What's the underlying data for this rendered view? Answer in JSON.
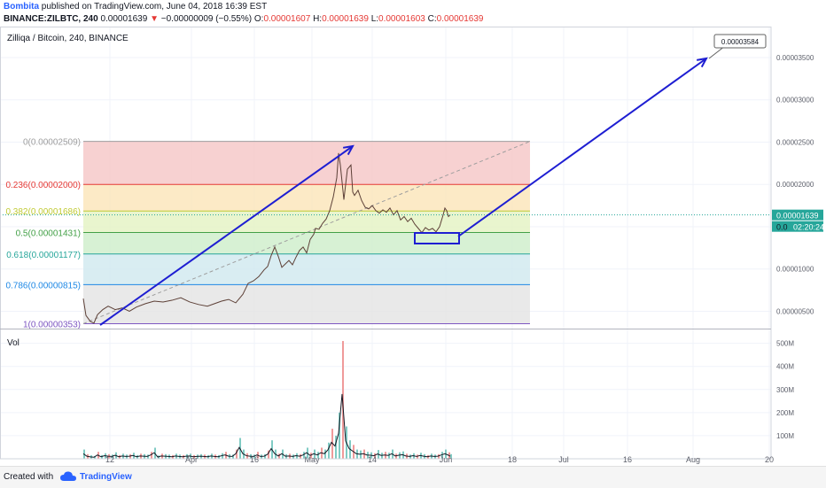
{
  "header": {
    "author": "Bombita",
    "published": "published on TradingView.com, June 04, 2018 16:39 EST",
    "symbol": "BINANCE:ZILBTC, 240",
    "price": "0.00001639",
    "change_arrow": "▼",
    "change": "−0.00000009 (−0.55%)",
    "o_label": "O:",
    "o_value": "0.00001607",
    "h_label": "H:",
    "h_value": "0.00001639",
    "l_label": "L:",
    "l_value": "0.00001603",
    "c_label": "C:",
    "c_value": "0.00001639"
  },
  "chart_title": "Zilliqa / Bitcoin, 240, BINANCE",
  "volume_label": "Vol",
  "footer": {
    "created_with": "Created with",
    "brand": "TradingView",
    "logo_icon": "tradingview-cloud-icon"
  },
  "chart_data": {
    "type": "line",
    "ylim": [
      2.5e-06,
      4e-06
    ],
    "y_ticks": [
      "0.00003500",
      "0.00003000",
      "0.00002500",
      "0.00002000",
      "0.00001500",
      "0.00001000",
      "0.00000500"
    ],
    "y_tick_values": [
      3.5e-05,
      3e-05,
      2.5e-05,
      2e-05,
      1.5e-05,
      1e-05,
      5e-06
    ],
    "x_ticks": [
      "12",
      "Apr",
      "16",
      "May",
      "14",
      "Jun",
      "18",
      "Jul",
      "16",
      "Aug",
      "20"
    ],
    "last_price_label": "0.00001639",
    "countdown_label": "02:20:24",
    "last_price_short": "0.0",
    "target_label": "0.00003584",
    "fib_levels": [
      {
        "ratio": 0,
        "label": "0(0.00002509)",
        "value": 2.509e-05,
        "color": "#9e9e9e",
        "fill": "#f5c6c6"
      },
      {
        "ratio": 0.236,
        "label": "0.236(0.00002000)",
        "value": 2e-05,
        "color": "#e53935",
        "fill": "#fbe5b8"
      },
      {
        "ratio": 0.382,
        "label": "0.382(0.00001686)",
        "value": 1.686e-05,
        "color": "#c0ca33",
        "fill": "#e4f3c2"
      },
      {
        "ratio": 0.5,
        "label": "0.5(0.00001431)",
        "value": 1.431e-05,
        "color": "#43a047",
        "fill": "#cdeec9"
      },
      {
        "ratio": 0.618,
        "label": "0.618(0.00001177)",
        "value": 1.177e-05,
        "color": "#26a69a",
        "fill": "#cfe8ef"
      },
      {
        "ratio": 0.786,
        "label": "0.786(0.00000815)",
        "value": 8.15e-06,
        "color": "#1e88e5",
        "fill": "#e3e3e3"
      },
      {
        "ratio": 1,
        "label": "1(0.00000353)",
        "value": 3.53e-06,
        "color": "#7e57c2",
        "fill": null
      }
    ],
    "price_series": [
      [
        0,
        6.5
      ],
      [
        3,
        4.5
      ],
      [
        8,
        3.8
      ],
      [
        12,
        3.6
      ],
      [
        16,
        4.6
      ],
      [
        22,
        5.2
      ],
      [
        28,
        5.6
      ],
      [
        36,
        5.2
      ],
      [
        44,
        5.4
      ],
      [
        52,
        5.0
      ],
      [
        60,
        5.5
      ],
      [
        70,
        5.9
      ],
      [
        80,
        6.2
      ],
      [
        90,
        6.1
      ],
      [
        100,
        6.3
      ],
      [
        110,
        6.6
      ],
      [
        120,
        6.1
      ],
      [
        130,
        5.8
      ],
      [
        140,
        5.6
      ],
      [
        148,
        5.9
      ],
      [
        156,
        6.2
      ],
      [
        164,
        6.4
      ],
      [
        172,
        6.0
      ],
      [
        180,
        7.0
      ],
      [
        186,
        8.3
      ],
      [
        192,
        8.6
      ],
      [
        198,
        9.1
      ],
      [
        204,
        9.9
      ],
      [
        208,
        10.3
      ],
      [
        212,
        11.6
      ],
      [
        216,
        12.6
      ],
      [
        220,
        11.5
      ],
      [
        224,
        10.2
      ],
      [
        228,
        10.6
      ],
      [
        232,
        11.0
      ],
      [
        236,
        10.5
      ],
      [
        240,
        11.4
      ],
      [
        244,
        12.2
      ],
      [
        248,
        12.6
      ],
      [
        252,
        11.9
      ],
      [
        256,
        13.5
      ],
      [
        260,
        14.1
      ],
      [
        262,
        14.8
      ],
      [
        266,
        14.7
      ],
      [
        270,
        15.4
      ],
      [
        274,
        15.9
      ],
      [
        278,
        16.9
      ],
      [
        282,
        18.5
      ],
      [
        286,
        20.8
      ],
      [
        288,
        23.7
      ],
      [
        290,
        22.3
      ],
      [
        294,
        18.2
      ],
      [
        298,
        21.8
      ],
      [
        302,
        22.3
      ],
      [
        304,
        19.1
      ],
      [
        306,
        18.7
      ],
      [
        310,
        19.3
      ],
      [
        314,
        18.1
      ],
      [
        318,
        17.3
      ],
      [
        322,
        17.1
      ],
      [
        326,
        17.5
      ],
      [
        330,
        16.9
      ],
      [
        334,
        16.6
      ],
      [
        338,
        17.0
      ],
      [
        342,
        16.7
      ],
      [
        346,
        17.2
      ],
      [
        350,
        16.4
      ],
      [
        354,
        16.9
      ],
      [
        358,
        15.8
      ],
      [
        362,
        16.2
      ],
      [
        366,
        15.6
      ],
      [
        370,
        16.0
      ],
      [
        374,
        15.3
      ],
      [
        378,
        14.8
      ],
      [
        382,
        14.3
      ],
      [
        386,
        14.9
      ],
      [
        390,
        14.6
      ],
      [
        394,
        14.8
      ],
      [
        398,
        14.4
      ],
      [
        402,
        15.0
      ],
      [
        406,
        16.4
      ],
      [
        408,
        17.2
      ],
      [
        410,
        16.9
      ],
      [
        412,
        16.2
      ],
      [
        414,
        16.4
      ]
    ],
    "volume_series": [
      [
        0,
        40
      ],
      [
        4,
        20
      ],
      [
        8,
        15
      ],
      [
        12,
        12
      ],
      [
        16,
        30
      ],
      [
        20,
        16
      ],
      [
        24,
        24
      ],
      [
        28,
        20
      ],
      [
        32,
        18
      ],
      [
        36,
        28
      ],
      [
        40,
        16
      ],
      [
        44,
        22
      ],
      [
        48,
        18
      ],
      [
        52,
        20
      ],
      [
        56,
        26
      ],
      [
        60,
        16
      ],
      [
        64,
        22
      ],
      [
        68,
        20
      ],
      [
        72,
        18
      ],
      [
        76,
        30
      ],
      [
        80,
        48
      ],
      [
        84,
        14
      ],
      [
        88,
        22
      ],
      [
        92,
        20
      ],
      [
        96,
        18
      ],
      [
        100,
        16
      ],
      [
        104,
        22
      ],
      [
        108,
        18
      ],
      [
        112,
        16
      ],
      [
        116,
        20
      ],
      [
        120,
        22
      ],
      [
        124,
        16
      ],
      [
        128,
        18
      ],
      [
        132,
        20
      ],
      [
        136,
        18
      ],
      [
        140,
        16
      ],
      [
        144,
        22
      ],
      [
        148,
        18
      ],
      [
        152,
        16
      ],
      [
        156,
        24
      ],
      [
        160,
        30
      ],
      [
        164,
        20
      ],
      [
        168,
        18
      ],
      [
        172,
        40
      ],
      [
        176,
        90
      ],
      [
        180,
        40
      ],
      [
        184,
        24
      ],
      [
        188,
        20
      ],
      [
        192,
        18
      ],
      [
        196,
        30
      ],
      [
        200,
        18
      ],
      [
        204,
        20
      ],
      [
        208,
        36
      ],
      [
        212,
        80
      ],
      [
        216,
        40
      ],
      [
        220,
        22
      ],
      [
        224,
        40
      ],
      [
        228,
        20
      ],
      [
        232,
        22
      ],
      [
        236,
        18
      ],
      [
        240,
        24
      ],
      [
        244,
        20
      ],
      [
        248,
        30
      ],
      [
        252,
        48
      ],
      [
        256,
        26
      ],
      [
        260,
        40
      ],
      [
        264,
        30
      ],
      [
        268,
        48
      ],
      [
        272,
        40
      ],
      [
        276,
        70
      ],
      [
        280,
        130
      ],
      [
        284,
        100
      ],
      [
        288,
        200
      ],
      [
        292,
        510
      ],
      [
        296,
        140
      ],
      [
        300,
        80
      ],
      [
        304,
        60
      ],
      [
        308,
        40
      ],
      [
        312,
        36
      ],
      [
        316,
        40
      ],
      [
        320,
        30
      ],
      [
        324,
        28
      ],
      [
        328,
        24
      ],
      [
        332,
        38
      ],
      [
        336,
        26
      ],
      [
        340,
        30
      ],
      [
        344,
        26
      ],
      [
        348,
        40
      ],
      [
        352,
        22
      ],
      [
        356,
        28
      ],
      [
        360,
        32
      ],
      [
        364,
        22
      ],
      [
        368,
        18
      ],
      [
        372,
        24
      ],
      [
        376,
        18
      ],
      [
        380,
        26
      ],
      [
        384,
        20
      ],
      [
        388,
        16
      ],
      [
        392,
        22
      ],
      [
        396,
        18
      ],
      [
        400,
        20
      ],
      [
        404,
        30
      ],
      [
        408,
        40
      ],
      [
        412,
        28
      ],
      [
        414,
        20
      ]
    ],
    "vol_ticks": [
      "500M",
      "400M",
      "300M",
      "200M",
      "100M"
    ],
    "vol_tick_values": [
      500,
      400,
      300,
      200,
      100
    ],
    "vol_max": 560,
    "grid": true
  }
}
